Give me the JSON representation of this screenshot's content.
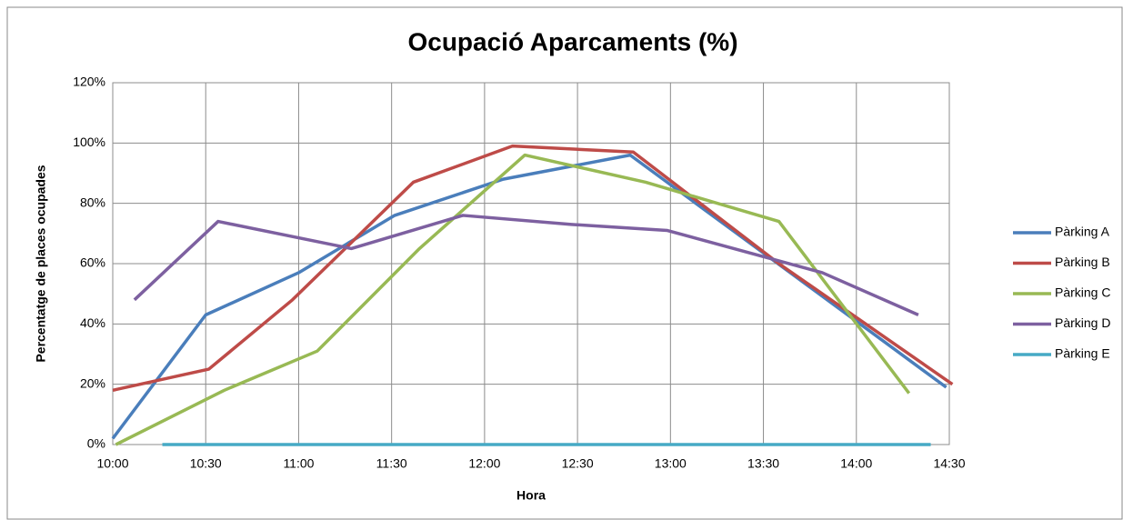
{
  "chart_data": {
    "type": "line",
    "title": "Ocupació Aparcaments (%)",
    "x_label": "Hora",
    "y_label": "Percentatge de places ocupades",
    "xlim": [
      600,
      870
    ],
    "xticks": [
      {
        "value": 600,
        "label": "10:00"
      },
      {
        "value": 630,
        "label": "10:30"
      },
      {
        "value": 660,
        "label": "11:00"
      },
      {
        "value": 690,
        "label": "11:30"
      },
      {
        "value": 720,
        "label": "12:00"
      },
      {
        "value": 750,
        "label": "12:30"
      },
      {
        "value": 780,
        "label": "13:00"
      },
      {
        "value": 810,
        "label": "13:30"
      },
      {
        "value": 840,
        "label": "14:00"
      },
      {
        "value": 870,
        "label": "14:30"
      }
    ],
    "ylim": [
      0,
      120
    ],
    "yticks": [
      {
        "value": 0,
        "label": "0%"
      },
      {
        "value": 20,
        "label": "20%"
      },
      {
        "value": 40,
        "label": "40%"
      },
      {
        "value": 60,
        "label": "60%"
      },
      {
        "value": 80,
        "label": "80%"
      },
      {
        "value": 100,
        "label": "100%"
      },
      {
        "value": 120,
        "label": "120%"
      }
    ],
    "grid": true,
    "legend": "right",
    "series": [
      {
        "name": "Pàrking A",
        "color": "#4a7ebb",
        "x": [
          600,
          630,
          660,
          691,
          726,
          767,
          869
        ],
        "values": [
          2,
          43,
          57,
          76,
          88,
          96,
          19
        ]
      },
      {
        "name": "Pàrking B",
        "color": "#be4b48",
        "x": [
          600,
          631,
          658,
          697,
          729,
          768,
          815,
          871
        ],
        "values": [
          18,
          25,
          48,
          87,
          99,
          97,
          60,
          20
        ]
      },
      {
        "name": "Pàrking C",
        "color": "#98b954",
        "x": [
          601,
          636,
          666,
          699,
          733,
          772,
          815,
          857
        ],
        "values": [
          0,
          18,
          31,
          65,
          96,
          87,
          74,
          17
        ]
      },
      {
        "name": "Pàrking D",
        "color": "#7d60a0",
        "x": [
          607,
          634,
          677,
          713,
          748,
          779,
          829,
          860
        ],
        "values": [
          48,
          74,
          65,
          76,
          73,
          71,
          57,
          43
        ]
      },
      {
        "name": "Pàrking E",
        "color": "#46aac5",
        "x": [
          616,
          864
        ],
        "values": [
          0,
          0
        ]
      }
    ]
  }
}
